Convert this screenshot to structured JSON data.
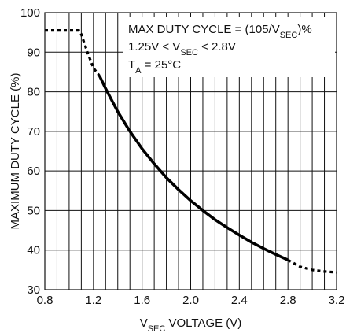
{
  "chart_data": {
    "type": "line",
    "xlabel": {
      "prefix": "V",
      "sub": "SEC",
      "suffix": " VOLTAGE (V)"
    },
    "ylabel": "MAXIMUM DUTY CYCLE (%)",
    "xlim": [
      0.8,
      3.2
    ],
    "ylim": [
      30,
      100
    ],
    "x_ticks": [
      "0.8",
      "1.2",
      "1.6",
      "2.0",
      "2.4",
      "2.8",
      "3.2"
    ],
    "x_minor_step": 0.1,
    "y_ticks": [
      "30",
      "40",
      "50",
      "60",
      "70",
      "80",
      "90",
      "100"
    ],
    "grid": true,
    "annotations": [
      {
        "parts": [
          {
            "t": "MAX DUTY CYCLE = (105/V"
          },
          {
            "t": "SEC",
            "sub": true
          },
          {
            "t": ")%"
          }
        ]
      },
      {
        "parts": [
          {
            "t": "1.25V < V"
          },
          {
            "t": "SEC",
            "sub": true
          },
          {
            "t": " < 2.8V"
          }
        ]
      },
      {
        "parts": [
          {
            "t": "T"
          },
          {
            "t": "A",
            "sub": true
          },
          {
            "t": " = 25°C"
          }
        ]
      }
    ],
    "series": [
      {
        "style": "solid",
        "x": [
          1.25,
          1.3,
          1.4,
          1.5,
          1.6,
          1.7,
          1.8,
          1.9,
          2.0,
          2.1,
          2.2,
          2.3,
          2.4,
          2.5,
          2.6,
          2.7,
          2.8
        ],
        "y": [
          84,
          80.8,
          75,
          70,
          65.6,
          61.8,
          58.3,
          55.3,
          52.5,
          50,
          47.7,
          45.7,
          43.8,
          42,
          40.4,
          38.9,
          37.5
        ]
      },
      {
        "style": "dashed",
        "x": [
          0.8,
          0.9,
          1.0,
          1.08,
          1.1,
          1.15,
          1.2,
          1.25
        ],
        "y": [
          95.5,
          95.5,
          95.5,
          95.5,
          94.5,
          90,
          86,
          84
        ]
      },
      {
        "style": "dashed",
        "x": [
          2.8,
          2.9,
          3.0,
          3.1,
          3.2
        ],
        "y": [
          37.5,
          35.8,
          35.0,
          34.6,
          34.4
        ]
      }
    ]
  }
}
